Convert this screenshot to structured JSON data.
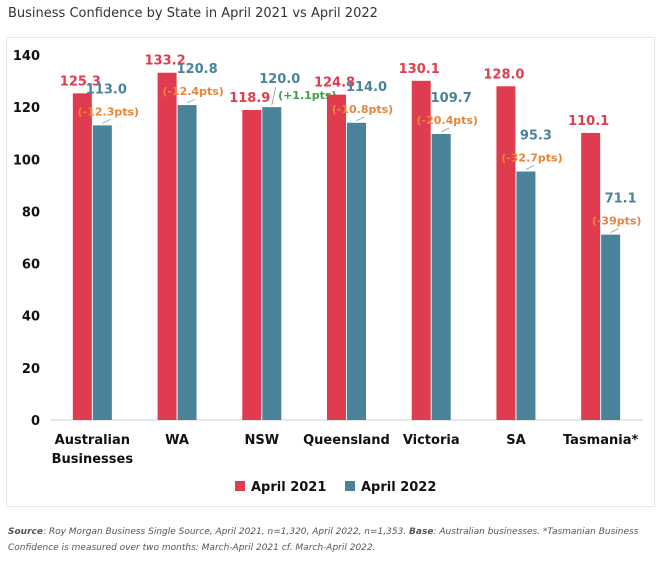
{
  "chart_data": {
    "type": "bar",
    "title": "Business Confidence by State in April 2021 vs April 2022",
    "categories": [
      [
        "Australian",
        "Businesses"
      ],
      [
        "WA"
      ],
      [
        "NSW"
      ],
      [
        "Queensland"
      ],
      [
        "Victoria"
      ],
      [
        "SA"
      ],
      [
        "Tasmania*"
      ]
    ],
    "series": [
      {
        "name": "April 2021",
        "color": "#e03c50",
        "values": [
          125.3,
          133.2,
          118.9,
          124.8,
          130.1,
          128.0,
          110.1
        ]
      },
      {
        "name": "April 2022",
        "color": "#4a8399",
        "values": [
          113.0,
          120.8,
          120.0,
          114.0,
          109.7,
          95.3,
          71.1
        ]
      }
    ],
    "value_labels": {
      "april_2021": [
        "125.3",
        "133.2",
        "118.9",
        "124.8",
        "130.1",
        "128.0",
        "110.1"
      ],
      "april_2022": [
        "113.0",
        "120.8",
        "120.0",
        "114.0",
        "109.7",
        "95.3",
        "71.1"
      ]
    },
    "change_labels": [
      "(-12.3pts)",
      "(-12.4pts)",
      "(+1.1pts)",
      "(-10.8pts)",
      "(-20.4pts)",
      "(-32.7pts)",
      "(-39pts)"
    ],
    "change_colors": {
      "negative": "#e8853a",
      "positive": "#3aa14a"
    },
    "ylim": [
      0,
      140
    ],
    "yticks": [
      "0",
      "20",
      "40",
      "60",
      "80",
      "100",
      "120",
      "140"
    ],
    "xlabel": "",
    "ylabel": "",
    "grid": false,
    "legend_position": "bottom"
  },
  "footnote": {
    "source_label": "Source",
    "source_text": ": Roy Morgan Business Single Source, April 2021, n=1,320, April 2022, n=1,353. ",
    "base_label": "Base",
    "base_text": ": Australian businesses. *Tasmanian Business Confidence is measured over two months: March-April 2021 cf. March-April 2022."
  }
}
